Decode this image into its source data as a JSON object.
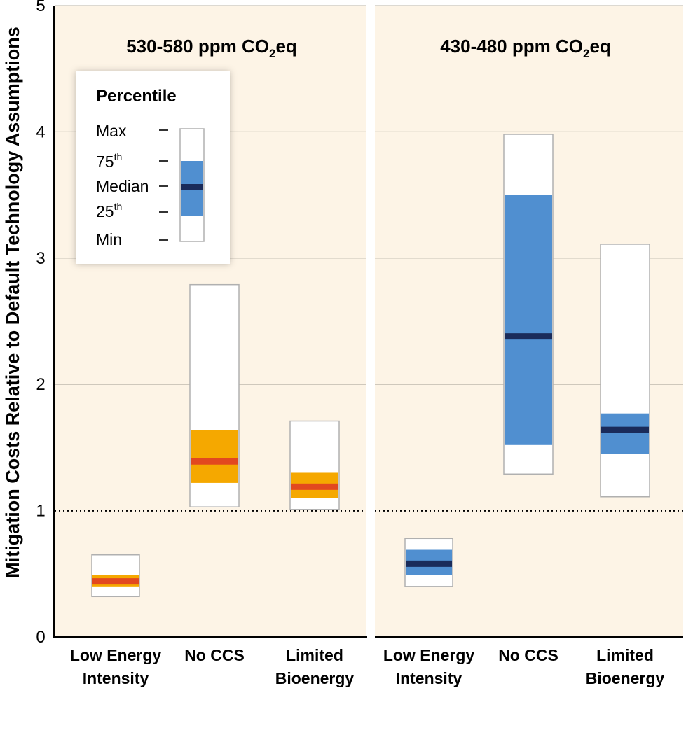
{
  "chart_data": {
    "type": "box",
    "ylabel": "Mitigation Costs Relative to Default Technology Assumptions",
    "ylim": [
      0,
      5
    ],
    "yticks": [
      0,
      1,
      2,
      3,
      4,
      5
    ],
    "reference_line": 1,
    "grid": true,
    "colors": {
      "background": "#fdf4e6",
      "grid": "#c8c2b6",
      "box_outline": "#b0b0b0",
      "whisker_fill": "#ffffff",
      "iqr_530": "#f5a800",
      "median_530": "#e2481f",
      "iqr_430": "#508fd0",
      "median_430": "#1a2b5a"
    },
    "panels": [
      {
        "title_main": "530-580 ppm CO",
        "title_sub": "2",
        "title_end": "eq",
        "categories": [
          {
            "label_line1": "Low Energy",
            "label_line2": "Intensity",
            "min": 0.32,
            "q25": 0.4,
            "median": 0.44,
            "q75": 0.49,
            "max": 0.65
          },
          {
            "label_line1": "No CCS",
            "label_line2": "",
            "min": 1.03,
            "q25": 1.22,
            "median": 1.39,
            "q75": 1.64,
            "max": 2.79
          },
          {
            "label_line1": "Limited",
            "label_line2": "Bioenergy",
            "min": 1.01,
            "q25": 1.1,
            "median": 1.19,
            "q75": 1.3,
            "max": 1.71
          }
        ]
      },
      {
        "title_main": "430-480 ppm CO",
        "title_sub": "2",
        "title_end": "eq",
        "categories": [
          {
            "label_line1": "Low Energy",
            "label_line2": "Intensity",
            "min": 0.4,
            "q25": 0.49,
            "median": 0.58,
            "q75": 0.69,
            "max": 0.78
          },
          {
            "label_line1": "No CCS",
            "label_line2": "",
            "min": 1.29,
            "q25": 1.52,
            "median": 2.38,
            "q75": 3.5,
            "max": 3.98
          },
          {
            "label_line1": "Limited",
            "label_line2": "Bioenergy",
            "min": 1.11,
            "q25": 1.45,
            "median": 1.64,
            "q75": 1.77,
            "max": 3.11
          }
        ]
      }
    ],
    "legend": {
      "title": "Percentile",
      "placement": "top-left",
      "rows": [
        {
          "label": "Max",
          "sup": ""
        },
        {
          "label": "75",
          "sup": "th"
        },
        {
          "label": "Median",
          "sup": ""
        },
        {
          "label": "25",
          "sup": "th"
        },
        {
          "label": "Min",
          "sup": ""
        }
      ]
    }
  }
}
